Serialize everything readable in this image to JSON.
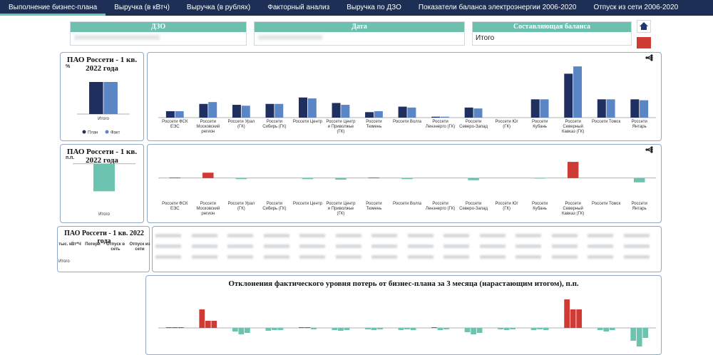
{
  "nav": {
    "tabs": [
      "Выполнение бизнес-плана",
      "Выручка (в кВтч)",
      "Выручка (в рублях)",
      "Факторный анализ",
      "Выручка по ДЗО",
      "Показатели баланса электроэнергии 2006-2020",
      "Отпуск из сети 2006-2020"
    ]
  },
  "filters": [
    {
      "label": "ДЗО"
    },
    {
      "label": "Дата"
    },
    {
      "label": "Составляющая баланса",
      "value": "Итого"
    }
  ],
  "table": {
    "title": "ПАО Россети - 1 кв. 2022 года",
    "columns": [
      "тыс. кВт*Ч",
      "Потери",
      "Отпуск в сеть",
      "Отпуск из сети"
    ],
    "rows": [
      [
        "Итого"
      ]
    ]
  },
  "chart_data": [
    {
      "type": "bar",
      "title": "ПАО Россети - 1 кв. 2022 года",
      "unit": "%",
      "categories": [
        "Итого"
      ],
      "series": [
        {
          "name": "План",
          "color": "#1f3060",
          "values": [
            15
          ]
        },
        {
          "name": "Факт",
          "color": "#5b86c5",
          "values": [
            15
          ]
        }
      ],
      "ylim": [
        0,
        20
      ]
    },
    {
      "type": "bar",
      "categories": [
        "Россети ФСК ЕЭС",
        "Россети Московский регион",
        "Россети Урал (ГК)",
        "Россети Сибирь (ГК)",
        "Россети Центр",
        "Россети Центр и Приволжье (ГК)",
        "Россети Тюмень",
        "Россети Волга",
        "Россети Ленэнерго (ГК)",
        "Россети Северо-Запад",
        "Россети Юг (ГК)",
        "Россети Кубань",
        "Россети Северный Кавказ (ГК)",
        "Россети Томск",
        "Россети Янтарь"
      ],
      "series": [
        {
          "color": "#1f3060",
          "values": [
            7,
            15,
            14,
            15,
            22,
            16,
            6,
            12,
            1,
            11,
            0,
            20,
            48,
            20,
            20
          ]
        },
        {
          "color": "#5b86c5",
          "values": [
            7,
            17,
            13,
            15,
            21,
            14,
            7,
            11,
            1,
            10,
            0,
            20,
            56,
            20,
            19
          ]
        }
      ],
      "ylim": [
        0,
        60
      ]
    },
    {
      "type": "bar",
      "title": "ПАО Россети - 1 кв. 2022 года",
      "unit": "п.п.",
      "categories": [
        "Итого"
      ],
      "series": [
        {
          "color": "#6cc4b0",
          "values": [
            -0.02
          ]
        }
      ],
      "ylim": [
        -0.025,
        0.004
      ]
    },
    {
      "type": "bar",
      "categories": [
        "Россети ФСК ЕЭС",
        "Россети Московский регион",
        "Россети Урал (ГК)",
        "Россети Сибирь (ГК)",
        "Россети Центр",
        "Россети Центр и Приволжье (ГК)",
        "Россети Тюмень",
        "Россети Волга",
        "Россети Ленэнерго (ГК)",
        "Россети Северо-Запад",
        "Россети Юг (ГК)",
        "Россети Кубань",
        "Россети Северный Кавказ (ГК)",
        "Россети Томск",
        "Россети Янтарь"
      ],
      "series": [
        {
          "values": [
            0.1,
            1,
            -0.2,
            0,
            -0.2,
            -0.3,
            0.1,
            -0.2,
            0,
            -0.4,
            0,
            -0.1,
            3,
            0,
            -0.8
          ]
        }
      ],
      "color_positive": "#d03a35",
      "color_negative": "#6cc4b0",
      "ylim": [
        -4,
        5
      ]
    },
    {
      "type": "bar",
      "title": "Отклонения фактического уровня потерь от бизнес-плана за 3 месяца (нарастающим итогом), п.п.",
      "categories": [
        null,
        null,
        null,
        null,
        null,
        null,
        null,
        null,
        null,
        null,
        null,
        null,
        null,
        null,
        null
      ],
      "series": [
        {
          "values": [
            0.1,
            2.6,
            -0.5,
            -0.4,
            0.1,
            -0.3,
            -0.2,
            -0.3,
            0.1,
            -0.6,
            -0.2,
            -0.3,
            4,
            -0.3,
            -1.8
          ]
        },
        {
          "values": [
            0.1,
            1,
            -0.9,
            -0.3,
            0.1,
            -0.4,
            -0.3,
            -0.2,
            -0.3,
            -0.9,
            -0.3,
            -0.2,
            2.6,
            -0.5,
            -2.6
          ]
        },
        {
          "values": [
            0.1,
            1,
            -0.7,
            -0.3,
            -0.2,
            -0.3,
            -0.2,
            -0.3,
            -0.2,
            -0.7,
            -0.2,
            -0.3,
            2.6,
            -0.3,
            -1.4
          ]
        }
      ],
      "color_positive": "#d03a35",
      "color_negative": "#6cc4b0",
      "ylim": [
        -3,
        5
      ]
    }
  ]
}
